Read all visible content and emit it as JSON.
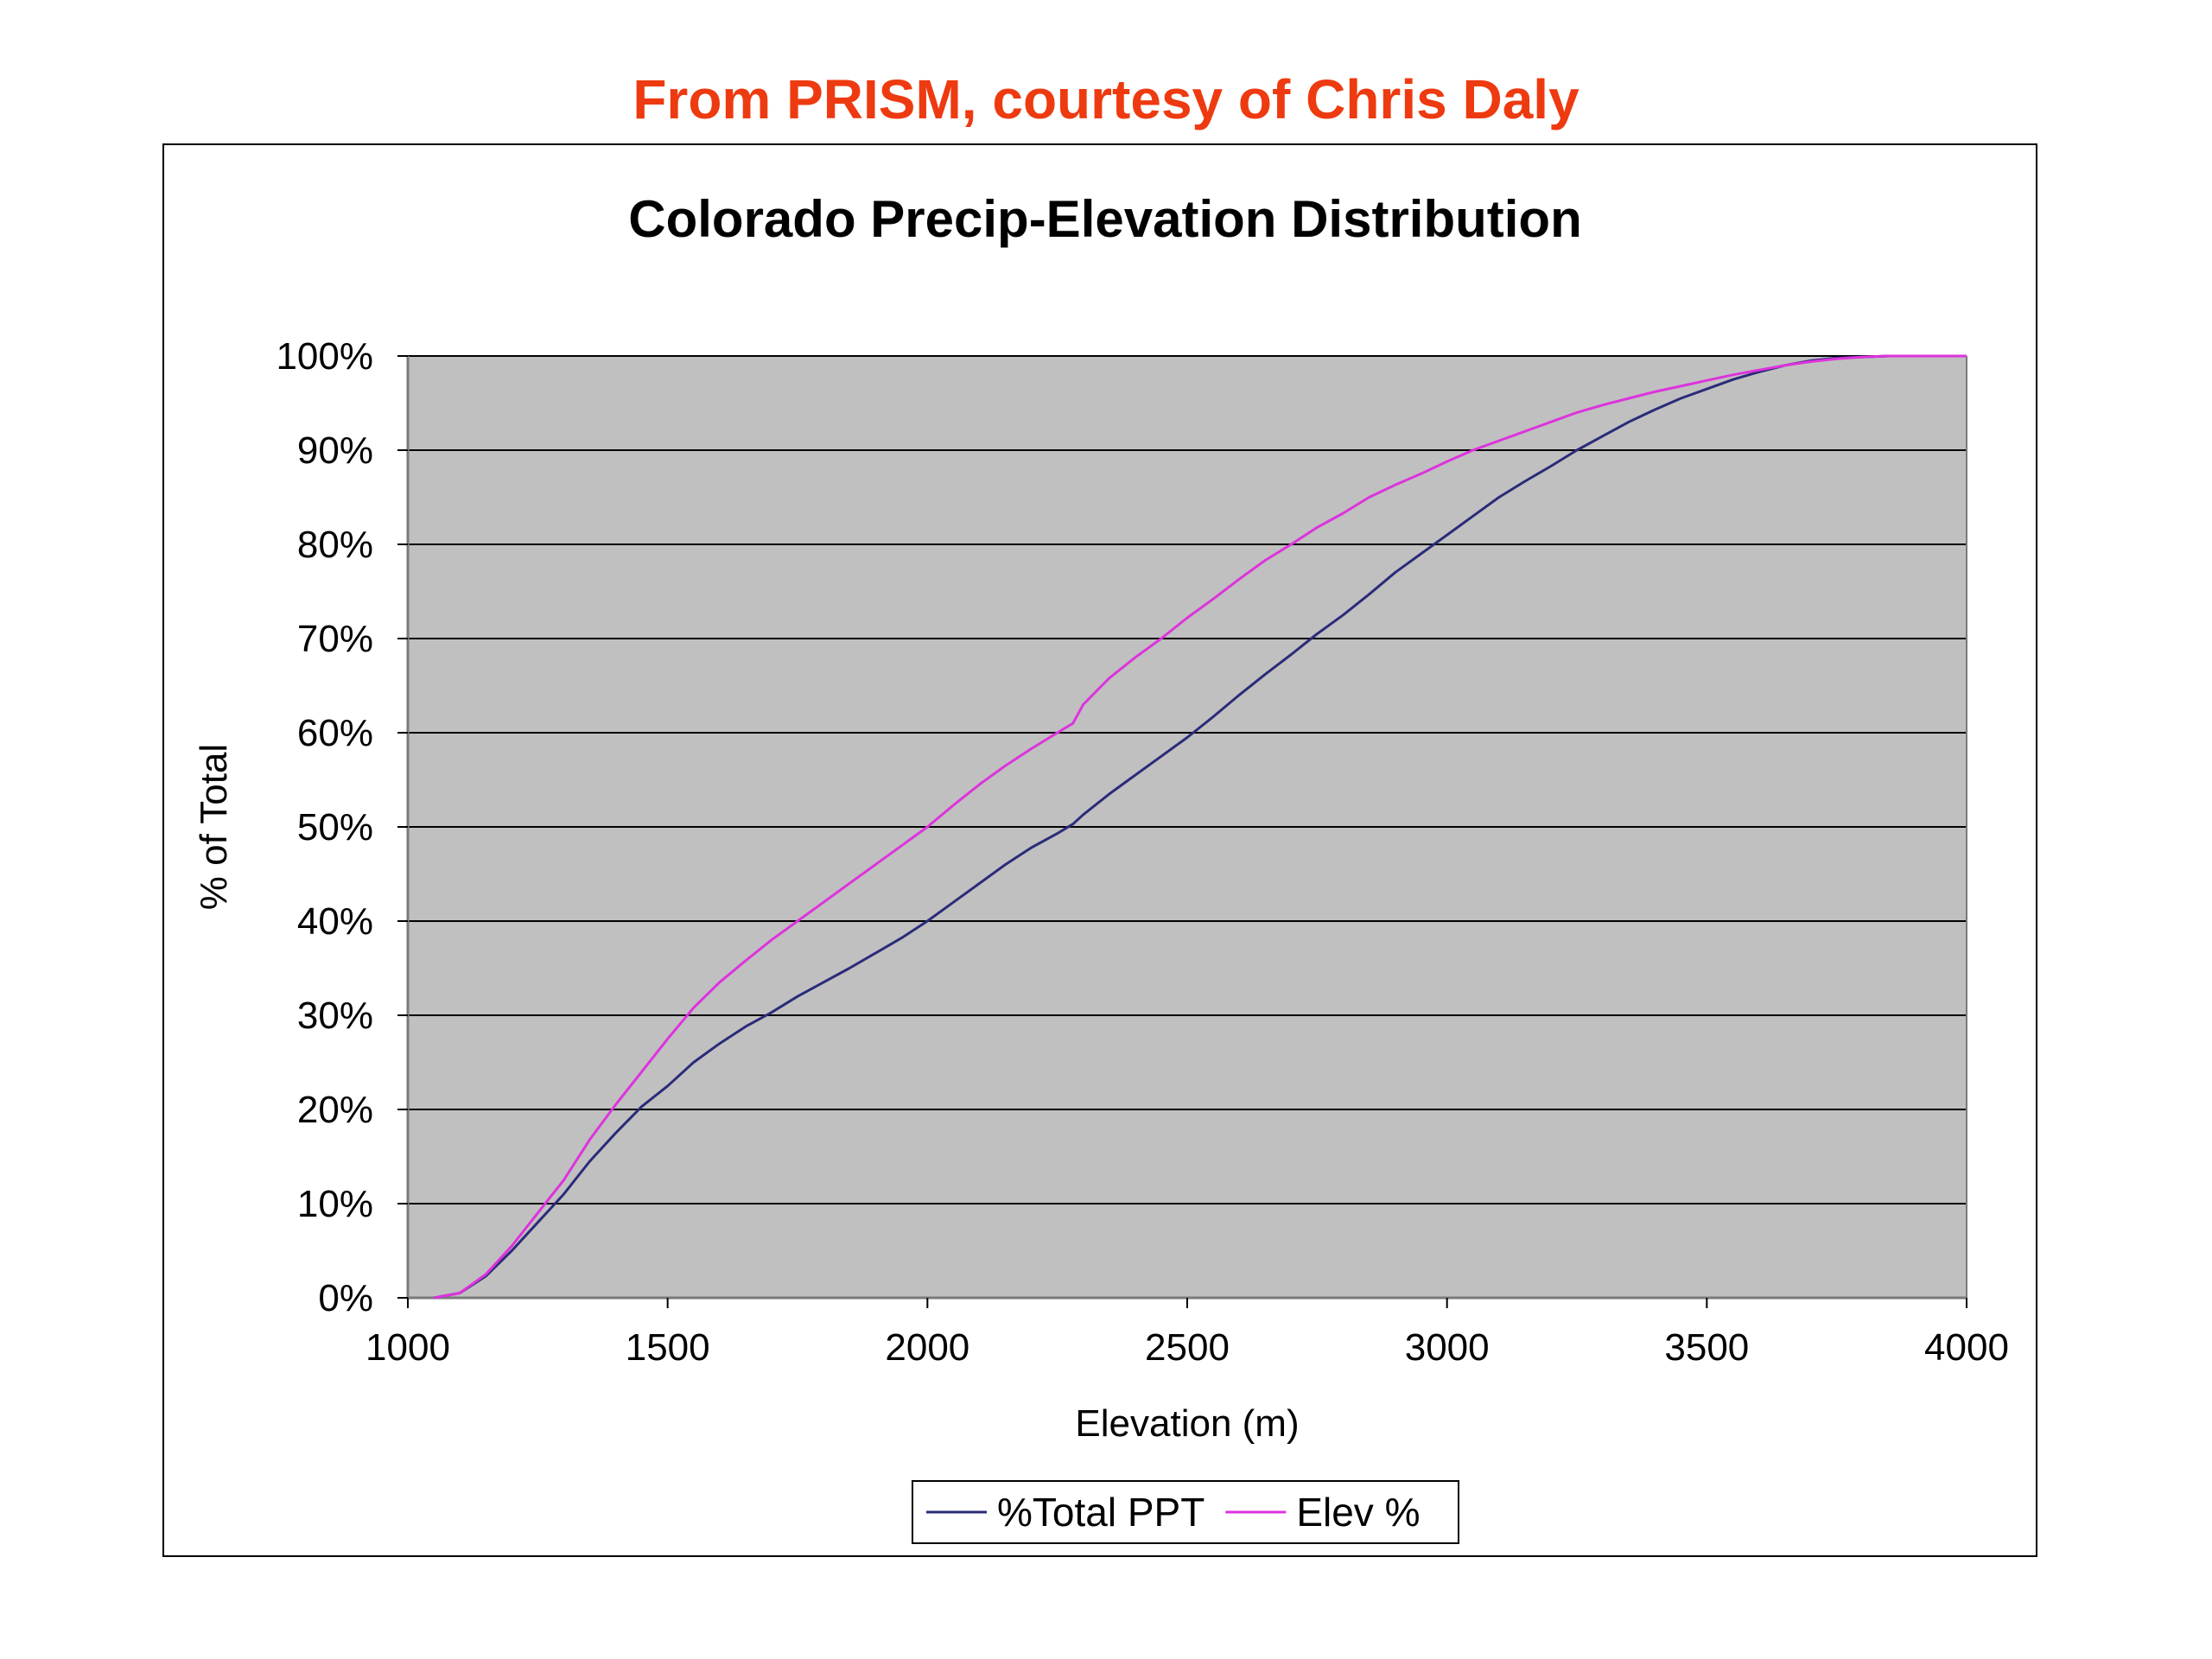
{
  "caption": {
    "text": "From PRISM, courtesy of Chris Daly",
    "color": "#ee3a10"
  },
  "chart_data": {
    "type": "line",
    "title": "Colorado Precip-Elevation Distribution",
    "xlabel": "Elevation (m)",
    "ylabel": "% of Total",
    "xlim": [
      1000,
      4000
    ],
    "ylim": [
      0,
      100
    ],
    "x_ticks": [
      1000,
      1500,
      2000,
      2500,
      3000,
      3500,
      4000
    ],
    "x_tick_labels": [
      "1000",
      "1500",
      "2000",
      "2500",
      "3000",
      "3500",
      "4000"
    ],
    "y_ticks": [
      0,
      10,
      20,
      30,
      40,
      50,
      60,
      70,
      80,
      90,
      100
    ],
    "y_tick_labels": [
      "0%",
      "10%",
      "20%",
      "30%",
      "40%",
      "50%",
      "60%",
      "70%",
      "80%",
      "90%",
      "100%"
    ],
    "grid": "horizontal",
    "plot_background": "#c0c0c0",
    "legend_position": "bottom",
    "series": [
      {
        "name": "%Total PPT",
        "color": "#2b2b7a",
        "x": [
          1050,
          1100,
          1150,
          1200,
          1250,
          1300,
          1350,
          1400,
          1450,
          1500,
          1550,
          1600,
          1650,
          1700,
          1750,
          1800,
          1850,
          1900,
          1950,
          2000,
          2050,
          2100,
          2150,
          2200,
          2250,
          2280,
          2300,
          2350,
          2400,
          2450,
          2500,
          2550,
          2600,
          2650,
          2700,
          2750,
          2800,
          2850,
          2900,
          2950,
          3000,
          3050,
          3100,
          3150,
          3200,
          3250,
          3300,
          3350,
          3400,
          3450,
          3500,
          3550,
          3600,
          3650,
          3700,
          3750,
          3800,
          3850,
          3900,
          4000
        ],
        "y": [
          0,
          0.5,
          2.3,
          5.0,
          8.0,
          11.0,
          14.5,
          17.5,
          20.3,
          22.5,
          25.0,
          27.0,
          28.8,
          30.3,
          32.0,
          33.5,
          35.0,
          36.6,
          38.2,
          40.0,
          42.0,
          44.0,
          46.0,
          47.8,
          49.3,
          50.3,
          51.3,
          53.5,
          55.5,
          57.5,
          59.5,
          61.7,
          64.0,
          66.2,
          68.3,
          70.5,
          72.5,
          74.7,
          77.0,
          79.0,
          81.0,
          83.0,
          85.0,
          86.7,
          88.3,
          90.0,
          91.5,
          93.0,
          94.3,
          95.5,
          96.5,
          97.5,
          98.3,
          99.0,
          99.5,
          99.8,
          99.9,
          100,
          100,
          100
        ]
      },
      {
        "name": "Elev %",
        "color": "#dd33dd",
        "x": [
          1050,
          1100,
          1150,
          1200,
          1250,
          1300,
          1350,
          1400,
          1450,
          1500,
          1550,
          1600,
          1650,
          1700,
          1750,
          1800,
          1850,
          1900,
          1950,
          2000,
          2050,
          2100,
          2150,
          2200,
          2250,
          2280,
          2300,
          2350,
          2400,
          2450,
          2500,
          2550,
          2600,
          2650,
          2700,
          2750,
          2800,
          2850,
          2900,
          2950,
          3000,
          3050,
          3100,
          3150,
          3200,
          3250,
          3300,
          3350,
          3400,
          3450,
          3500,
          3550,
          3600,
          3650,
          3700,
          3750,
          3800,
          3850,
          3900,
          4000
        ],
        "y": [
          0,
          0.5,
          2.5,
          5.5,
          9.0,
          12.5,
          16.8,
          20.5,
          24.0,
          27.5,
          30.8,
          33.5,
          35.8,
          38.0,
          40.0,
          42.0,
          44.0,
          46.0,
          48.0,
          50.0,
          52.3,
          54.5,
          56.5,
          58.3,
          60.0,
          61.0,
          63.0,
          65.8,
          68.0,
          70.0,
          72.2,
          74.2,
          76.3,
          78.3,
          80.0,
          81.8,
          83.3,
          85.0,
          86.3,
          87.5,
          88.8,
          90.0,
          91.0,
          92.0,
          93.0,
          94.0,
          94.8,
          95.5,
          96.2,
          96.8,
          97.4,
          98.0,
          98.5,
          99.0,
          99.4,
          99.7,
          99.9,
          100,
          100,
          100
        ]
      }
    ]
  }
}
